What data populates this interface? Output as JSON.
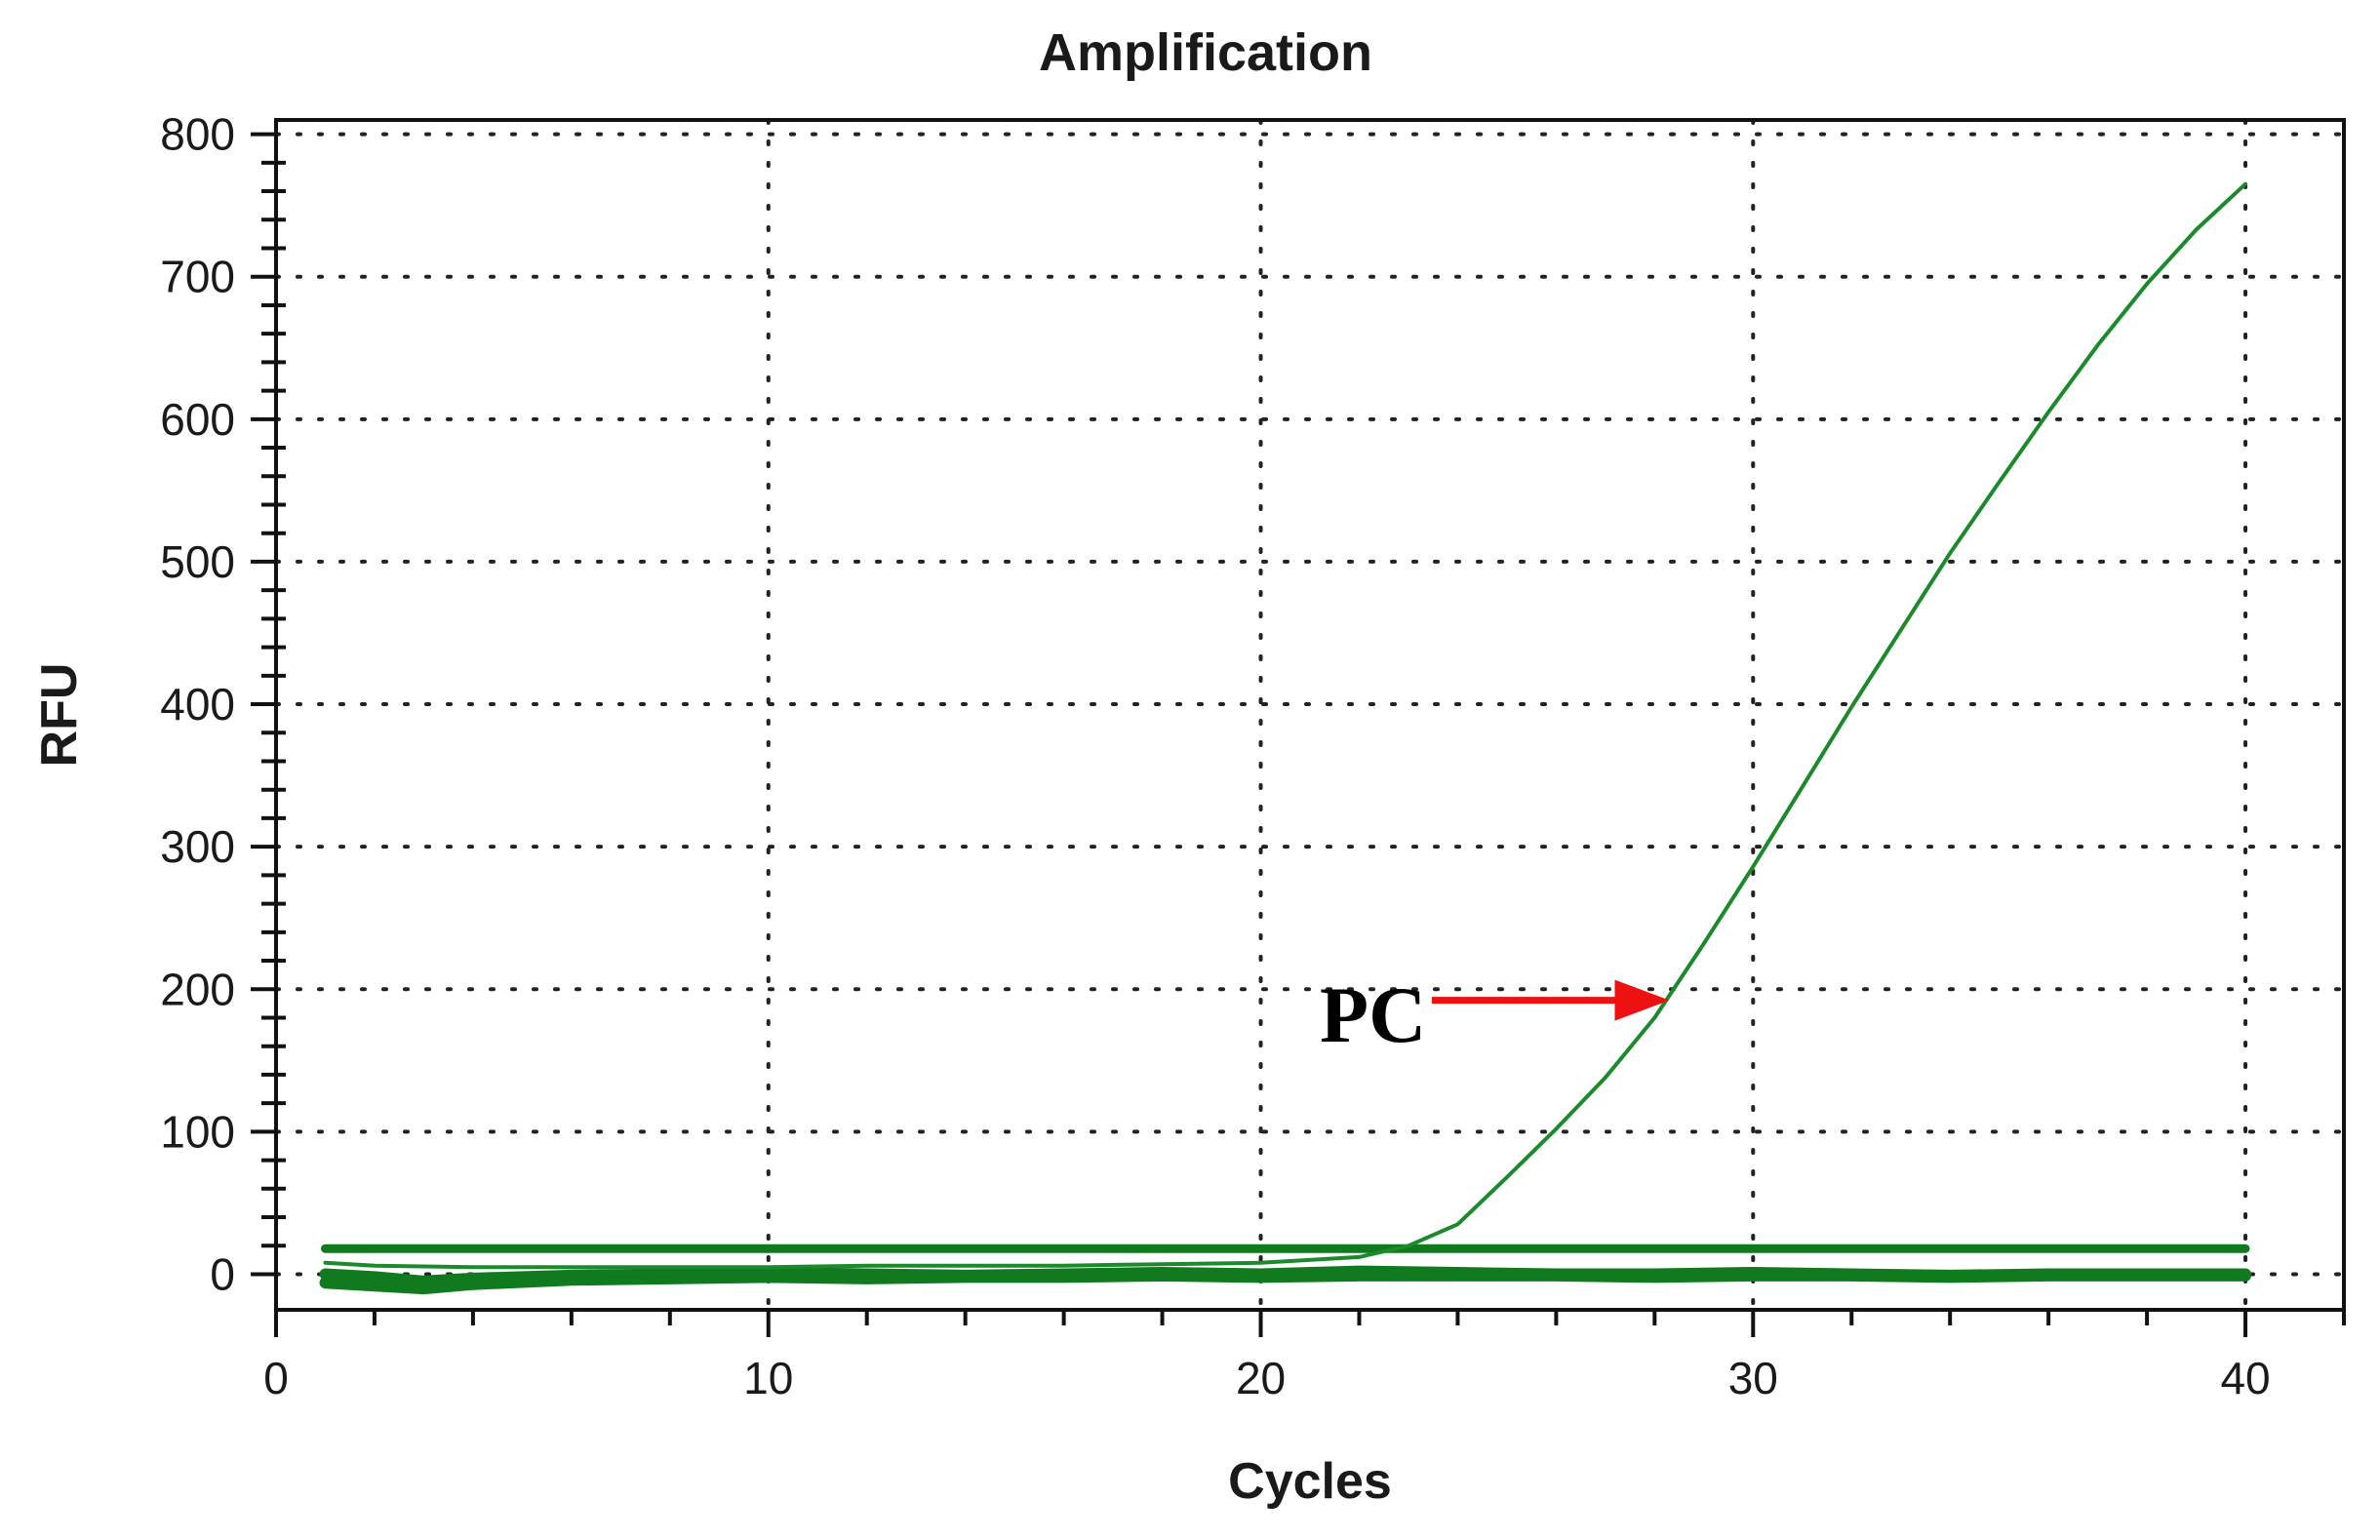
{
  "chart_data": {
    "type": "line",
    "title": "Amplification",
    "xlabel": "Cycles",
    "ylabel": "RFU",
    "xlim": [
      0,
      42
    ],
    "ylim": [
      -25,
      810
    ],
    "x_ticks": [
      0,
      10,
      20,
      30,
      40
    ],
    "y_ticks": [
      0,
      100,
      200,
      300,
      400,
      500,
      600,
      700,
      800
    ],
    "x_minor_step": 2,
    "y_minor_step": 20,
    "grid": true,
    "legend": "none",
    "colors": {
      "series": "#1a8a2a",
      "baseline": "#127a1e",
      "arrow": "#ee1111"
    },
    "series": [
      {
        "x": [
          1,
          2,
          4,
          6,
          8,
          10,
          12,
          14,
          16,
          18,
          20,
          22,
          23,
          24,
          25,
          26,
          27,
          28,
          29,
          30,
          31,
          32,
          33,
          34,
          35,
          36,
          37,
          38,
          39,
          40
        ],
        "y": [
          8,
          6,
          5,
          5,
          5,
          5,
          6,
          6,
          6,
          7,
          8,
          12,
          20,
          35,
          68,
          102,
          138,
          180,
          232,
          286,
          342,
          398,
          452,
          506,
          556,
          605,
          652,
          695,
          733,
          765
        ]
      },
      {
        "x": [
          1,
          2,
          4,
          6,
          8,
          10,
          12,
          14,
          16,
          18,
          20,
          22,
          24,
          26,
          28,
          30,
          32,
          34,
          36,
          38,
          40
        ],
        "y": [
          18,
          18,
          18,
          18,
          18,
          18,
          18,
          18,
          18,
          18,
          18,
          18,
          18,
          18,
          18,
          18,
          18,
          18,
          18,
          18,
          18
        ]
      },
      {
        "x": [
          1,
          2,
          3,
          4,
          6,
          8,
          10,
          12,
          14,
          16,
          18,
          20,
          22,
          24,
          26,
          28,
          30,
          32,
          34,
          36,
          38,
          40
        ],
        "y": [
          0,
          -2,
          -5,
          -3,
          -1,
          0,
          1,
          0,
          -1,
          0,
          1,
          0,
          2,
          1,
          0,
          0,
          1,
          0,
          -1,
          0,
          0,
          0
        ]
      },
      {
        "x": [
          1,
          2,
          3,
          4,
          6,
          8,
          10,
          12,
          14,
          16,
          18,
          20,
          22,
          24,
          26,
          28,
          30,
          32,
          34,
          36,
          38,
          40
        ],
        "y": [
          -6,
          -8,
          -10,
          -7,
          -4,
          -3,
          -2,
          -3,
          -2,
          -2,
          -1,
          -2,
          -1,
          -1,
          -1,
          -2,
          -1,
          -1,
          -2,
          -1,
          -1,
          -1
        ]
      }
    ],
    "annotations": [
      {
        "text": "PC",
        "arrow_to": {
          "x": 28.3,
          "y": 195
        }
      }
    ]
  }
}
